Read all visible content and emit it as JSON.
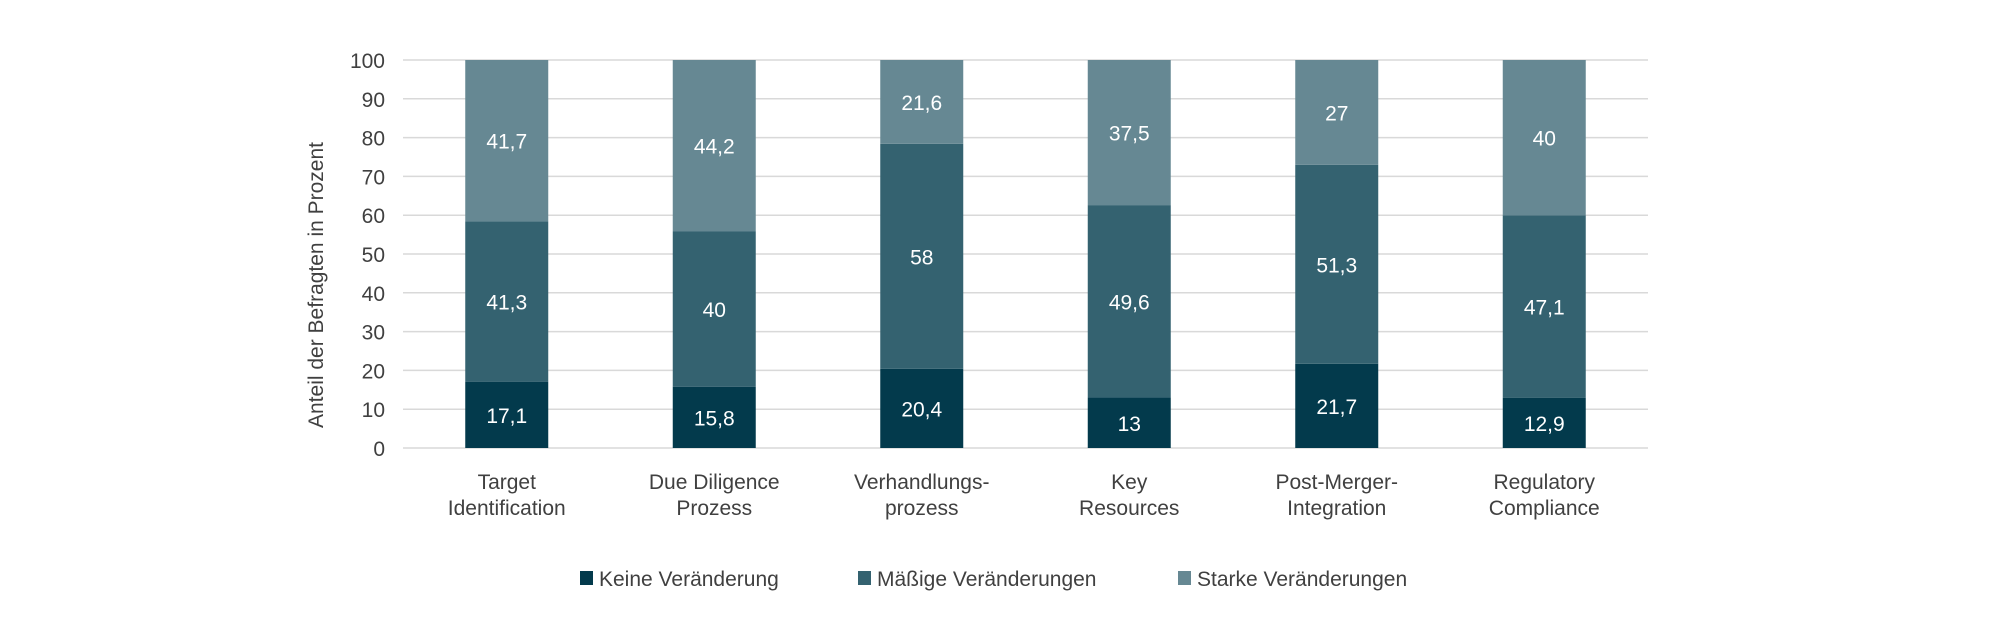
{
  "chart_data": {
    "type": "bar",
    "stacked": true,
    "title": "",
    "xlabel": "",
    "ylabel": "Anteil der Befragten in Prozent",
    "ylim": [
      0,
      100
    ],
    "yticks": [
      0,
      10,
      20,
      30,
      40,
      50,
      60,
      70,
      80,
      90,
      100
    ],
    "grid": true,
    "legend_position": "bottom",
    "categories": [
      [
        "Target",
        "Identification"
      ],
      [
        "Due Diligence",
        "Prozess"
      ],
      [
        "Verhandlungs-",
        "prozess"
      ],
      [
        "Key",
        "Resources"
      ],
      [
        "Post-Merger-",
        "Integration"
      ],
      [
        "Regulatory",
        "Compliance"
      ]
    ],
    "series": [
      {
        "name": "Keine Veränderung",
        "color": "#033a4c",
        "values": [
          17.1,
          15.8,
          20.4,
          13,
          21.7,
          12.9
        ],
        "labels": [
          "17,1",
          "15,8",
          "20,4",
          "13",
          "21,7",
          "12,9"
        ]
      },
      {
        "name": "Mäßige Veränderungen",
        "color": "#346270",
        "values": [
          41.3,
          40,
          58,
          49.6,
          51.3,
          47.1
        ],
        "labels": [
          "41,3",
          "40",
          "58",
          "49,6",
          "51,3",
          "47,1"
        ]
      },
      {
        "name": "Starke Veränderungen",
        "color": "#668893",
        "values": [
          41.7,
          44.2,
          21.6,
          37.5,
          27,
          40
        ],
        "labels": [
          "41,7",
          "44,2",
          "21,6",
          "37,5",
          "27",
          "40"
        ]
      }
    ]
  }
}
